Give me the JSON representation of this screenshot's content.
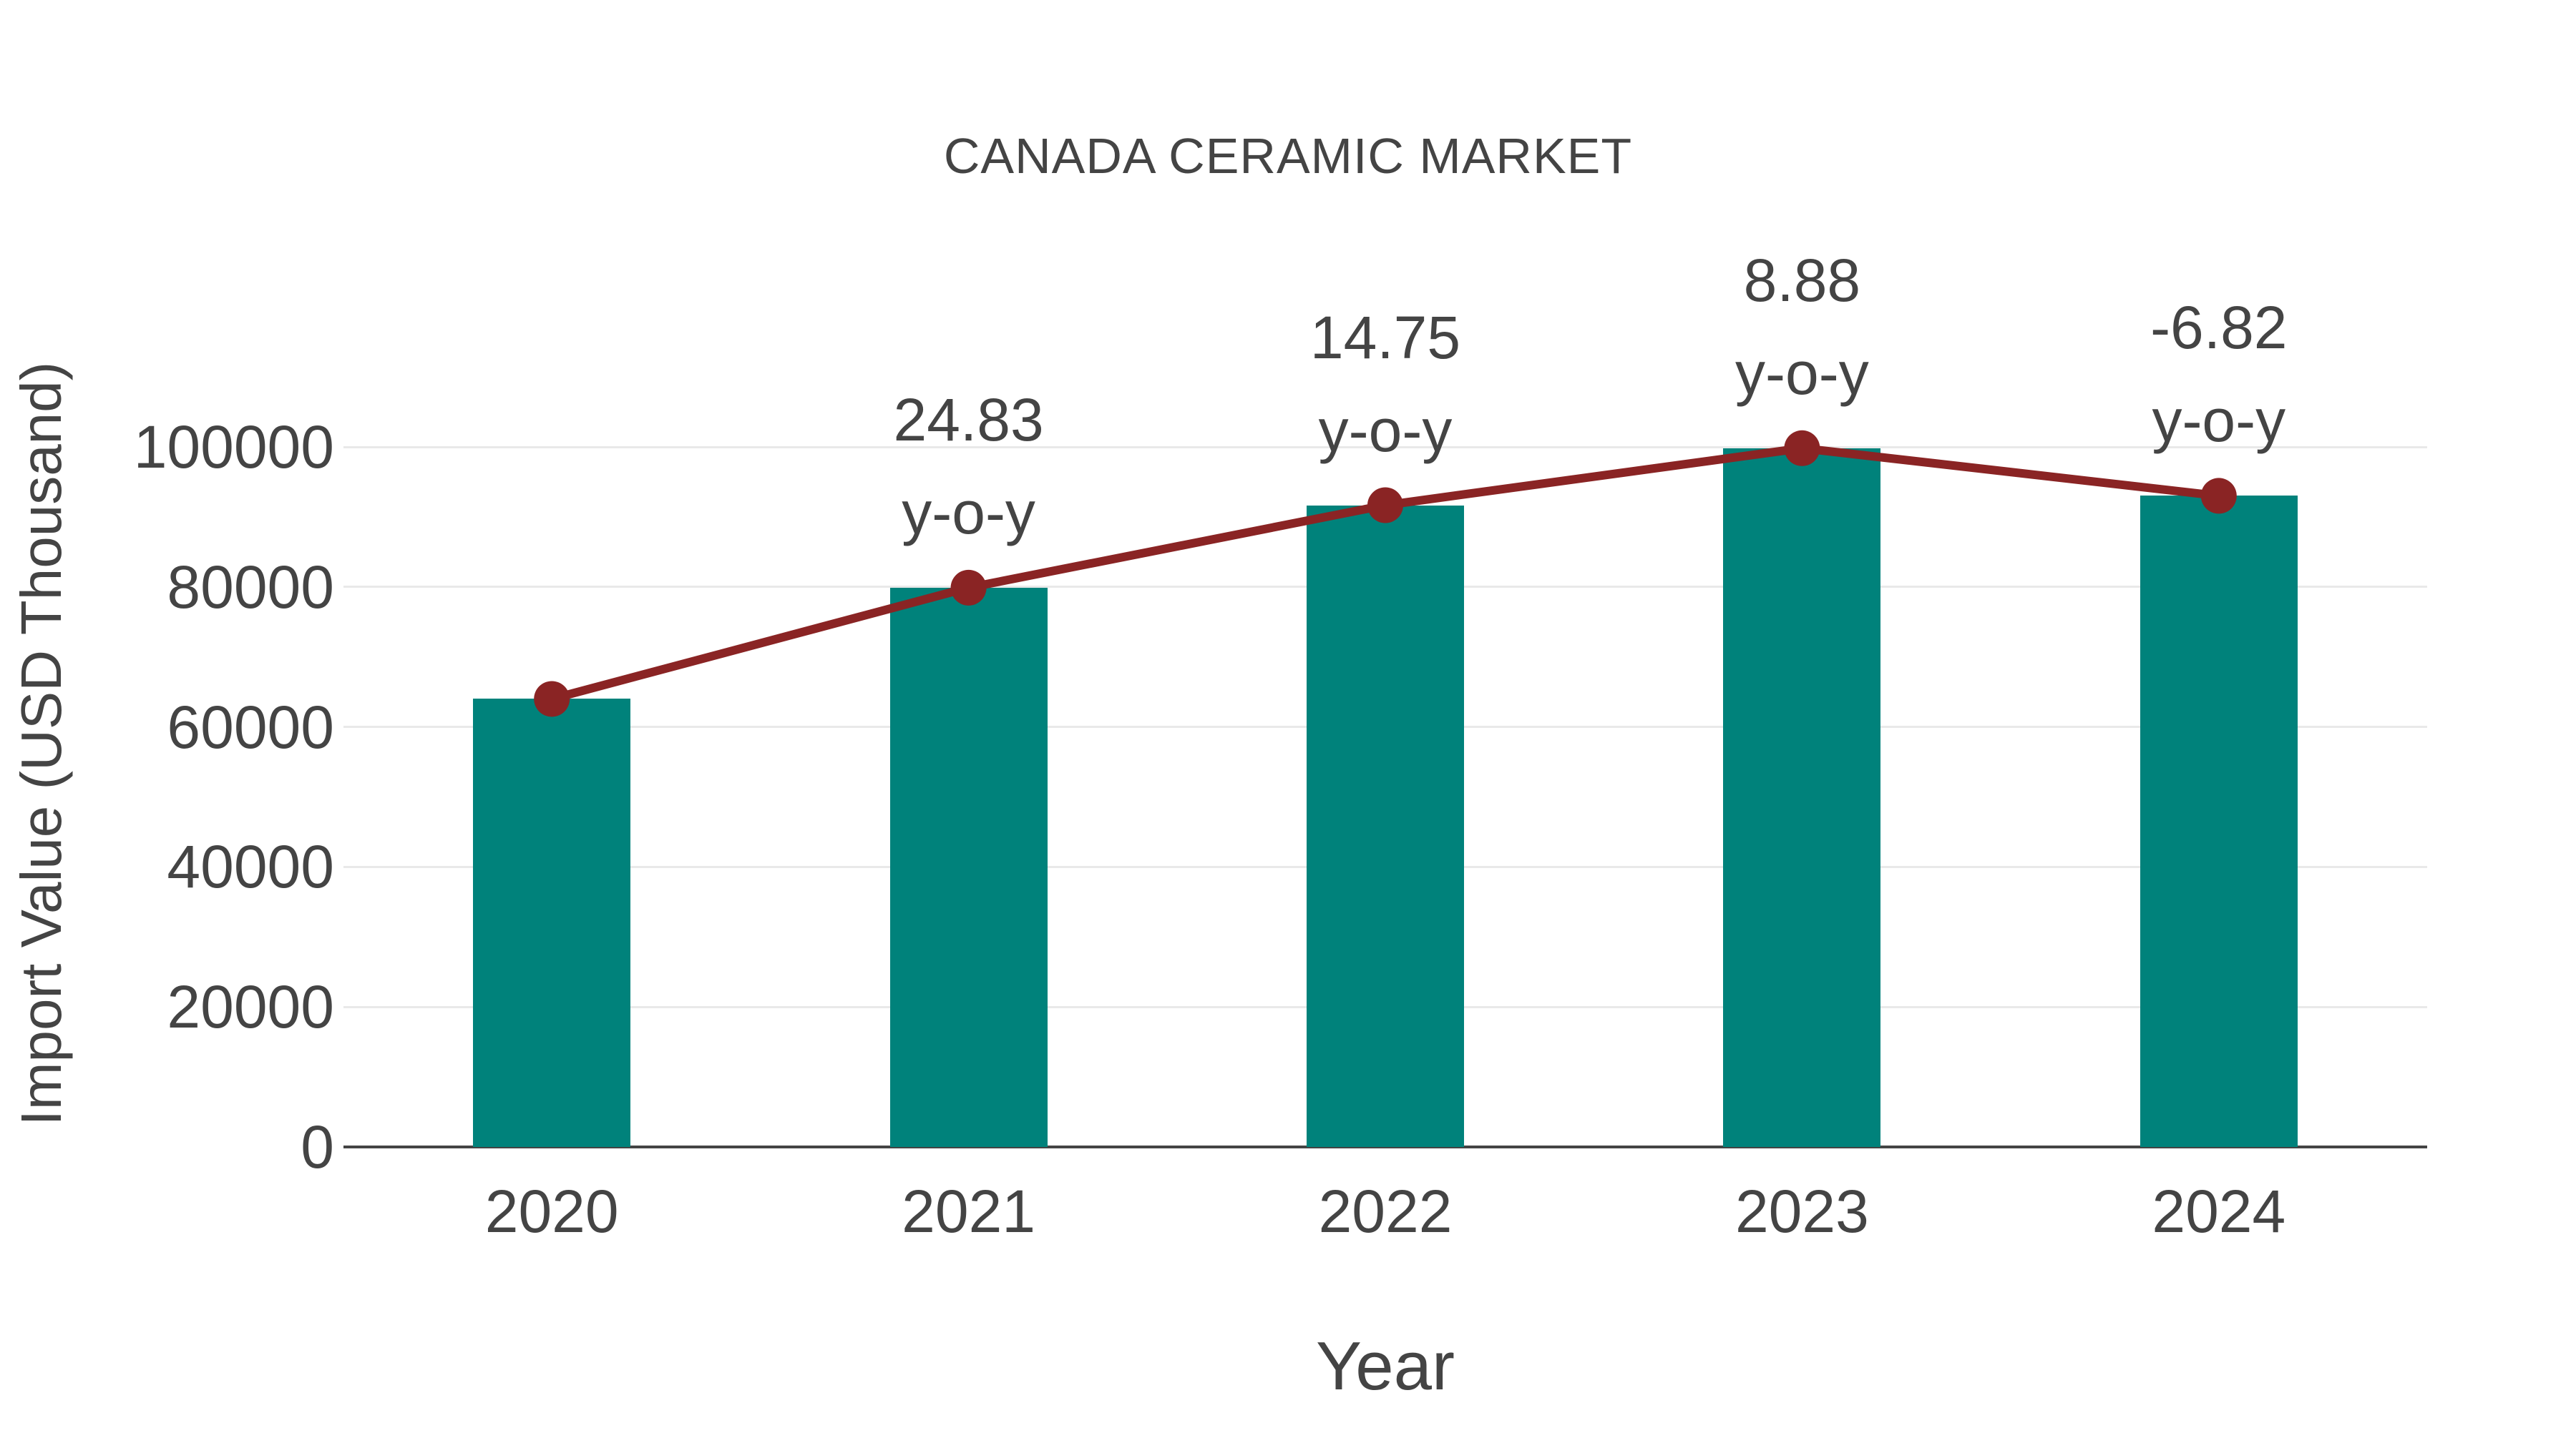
{
  "title": "CANADA CERAMIC MARKET",
  "colors": {
    "bar": "#00827b",
    "line": "#8a2424",
    "marker": "#8a2424",
    "text": "#444444",
    "grid": "#e9e9e9",
    "axis": "#444444",
    "background": "#ffffff"
  },
  "chart_data": {
    "type": "bar",
    "title": "CANADA CERAMIC MARKET",
    "xlabel": "Year",
    "ylabel": "Import Value (USD Thousand)",
    "categories": [
      "2020",
      "2021",
      "2022",
      "2023",
      "2024"
    ],
    "series": [
      {
        "name": "Import Value (USD Thousand)",
        "type": "bar",
        "values": [
          64000,
          79890,
          91675,
          99815,
          93010
        ]
      },
      {
        "name": "y-o-y trend",
        "type": "line+markers",
        "values": [
          64000,
          79890,
          91675,
          99815,
          93010
        ]
      }
    ],
    "annotations": [
      {
        "category": "2021",
        "value": "24.83",
        "suffix": "y-o-y"
      },
      {
        "category": "2022",
        "value": "14.75",
        "suffix": "y-o-y"
      },
      {
        "category": "2023",
        "value": "8.88",
        "suffix": "y-o-y"
      },
      {
        "category": "2024",
        "value": "-6.82",
        "suffix": "y-o-y"
      }
    ],
    "ylim": [
      0,
      100000
    ],
    "yticks": [
      0,
      20000,
      40000,
      60000,
      80000,
      100000
    ],
    "grid": "horizontal",
    "legend": "none"
  }
}
